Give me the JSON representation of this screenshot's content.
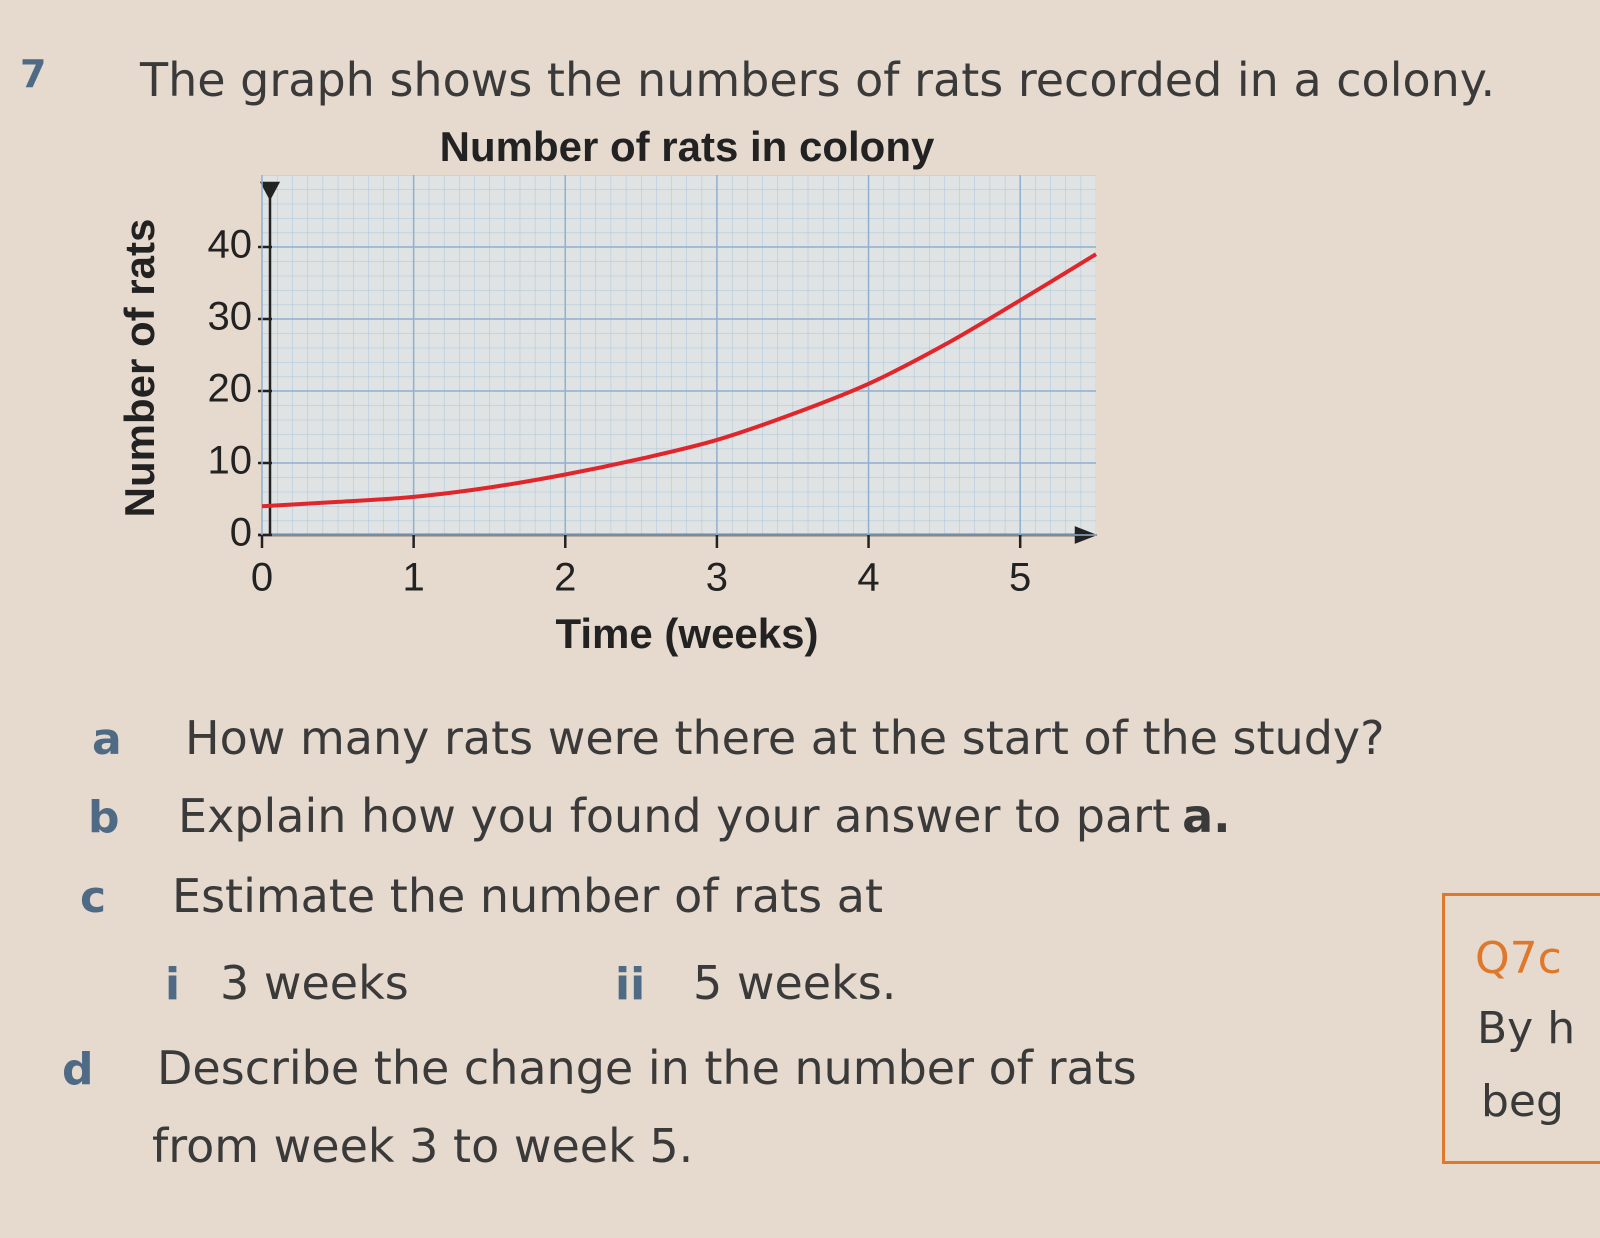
{
  "question": {
    "number": "7",
    "intro": "The graph shows the numbers of rats recorded in a colony.",
    "parts": [
      {
        "letter": "a",
        "text": "How many rats were there at the start of the study?"
      },
      {
        "letter": "b",
        "text": "Explain how you found your answer to part",
        "ref": "a."
      },
      {
        "letter": "c",
        "text": "Estimate the number of rats at",
        "subparts": [
          {
            "numeral": "i",
            "text": "3 weeks"
          },
          {
            "numeral": "ii",
            "text": "5 weeks."
          }
        ]
      },
      {
        "letter": "d",
        "text": "Describe the change in the number of rats",
        "text_continued": "from week 3 to week 5."
      }
    ]
  },
  "hint_box": {
    "title": "Q7c",
    "lines": [
      "By h",
      "beg"
    ]
  },
  "chart_data": {
    "type": "line",
    "title": "Number of rats in colony",
    "x_label": "Time (weeks)",
    "y_label": "Number of rats",
    "x": [
      0,
      0.5,
      1,
      1.5,
      2,
      2.5,
      3,
      3.5,
      4,
      4.5,
      5,
      5.5
    ],
    "values": [
      4,
      4.6,
      5.3,
      6.6,
      8.4,
      10.6,
      13.2,
      16.8,
      21,
      26.4,
      32.6,
      39
    ],
    "color": "#e0252b",
    "xlim": [
      0,
      5.5
    ],
    "ylim": [
      0,
      50
    ],
    "xticks": [
      0,
      1,
      2,
      3,
      4,
      5
    ],
    "yticks": [
      0,
      10,
      20,
      30,
      40
    ],
    "grid": true
  }
}
